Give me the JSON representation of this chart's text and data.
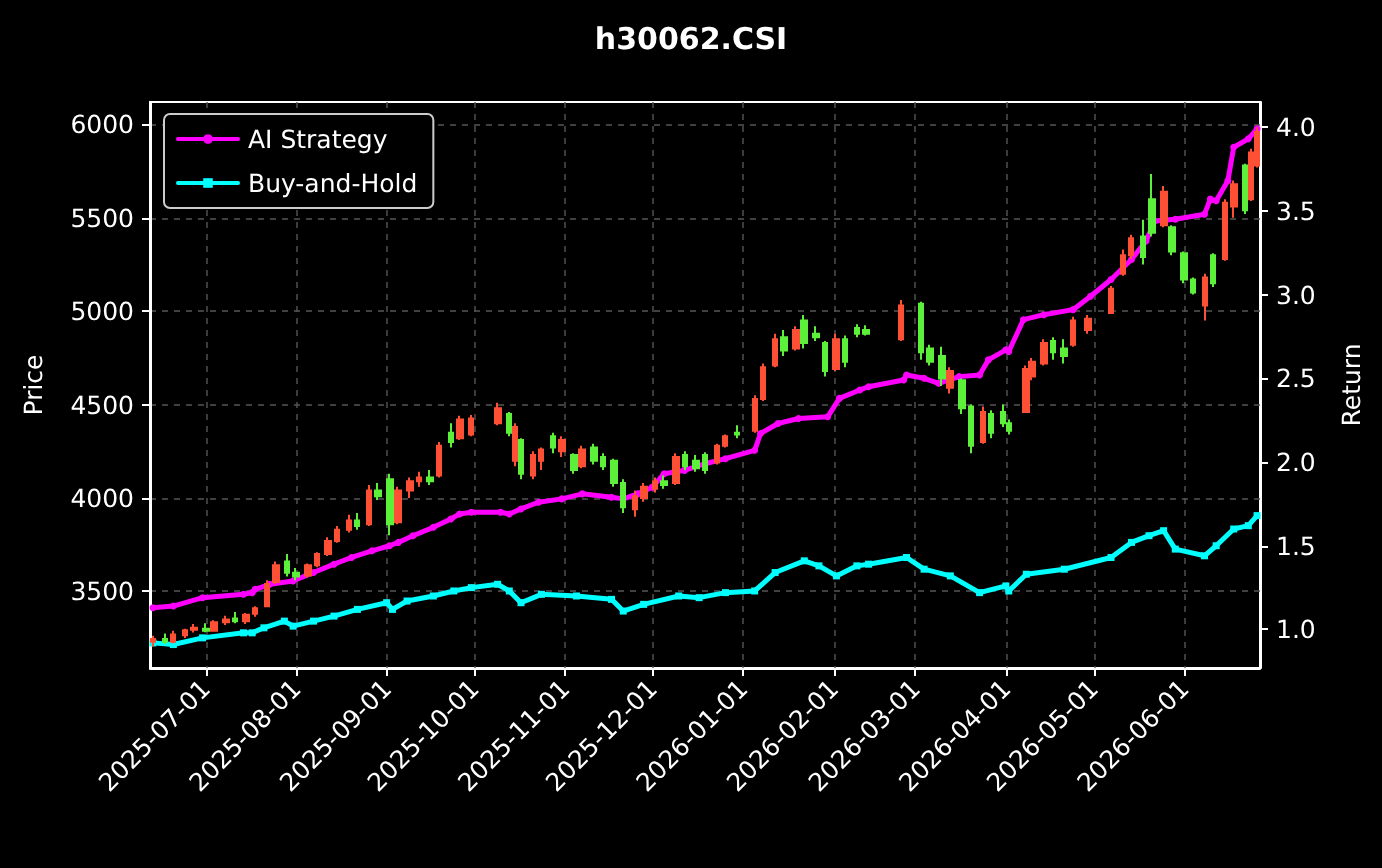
{
  "chart_data": {
    "type": "candlestick",
    "title": "h30062.CSI",
    "ylabel": "Price",
    "y2label": "Return",
    "xlim": [
      "2025-06-12",
      "2026-06-27"
    ],
    "xticks": [
      "2025-07-01",
      "2025-08-01",
      "2025-09-01",
      "2025-10-01",
      "2025-11-01",
      "2025-12-01",
      "2026-01-01",
      "2026-02-01",
      "2026-03-01",
      "2026-04-01",
      "2026-05-01",
      "2026-06-01"
    ],
    "ylim": [
      3090,
      6120
    ],
    "yticks": [
      3500,
      4000,
      4500,
      5000,
      5500,
      6000
    ],
    "y2lim": [
      0.77,
      4.15
    ],
    "y2ticks": [
      {
        "value": 1,
        "label": "1.0"
      },
      {
        "value": 1.5,
        "label": "1.5"
      },
      {
        "value": 2,
        "label": "2.0"
      },
      {
        "value": 2.5,
        "label": "2.5"
      },
      {
        "value": 3,
        "label": "3.0"
      },
      {
        "value": 3.5,
        "label": "3.5"
      },
      {
        "value": 4,
        "label": "4.0"
      }
    ],
    "grid": true,
    "legend": "top left",
    "series": [
      {
        "x": [
          "2025-06-13",
          "2025-06-17",
          "2025-06-20",
          "2025-06-24",
          "2025-06-27",
          "2025-07-01",
          "2025-07-04",
          "2025-07-08",
          "2025-07-11",
          "2025-07-15",
          "2025-07-18",
          "2025-07-22",
          "2025-07-25",
          "2025-07-29",
          "2025-08-01",
          "2025-08-05",
          "2025-08-08",
          "2025-08-12",
          "2025-08-15",
          "2025-08-19",
          "2025-08-22",
          "2025-08-26",
          "2025-08-29",
          "2025-09-02",
          "2025-09-05",
          "2025-09-09",
          "2025-09-12",
          "2025-09-16",
          "2025-09-19",
          "2025-09-23",
          "2025-09-26",
          "2025-09-30",
          "2025-10-09",
          "2025-10-13",
          "2025-10-15",
          "2025-10-17",
          "2025-10-21",
          "2025-10-24",
          "2025-10-28",
          "2025-10-31",
          "2025-11-04",
          "2025-11-07",
          "2025-11-11",
          "2025-11-14",
          "2025-11-18",
          "2025-11-21",
          "2025-11-25",
          "2025-11-28",
          "2025-12-02",
          "2025-12-05",
          "2025-12-09",
          "2025-12-12",
          "2025-12-16",
          "2025-12-19",
          "2025-12-23",
          "2025-12-26",
          "2025-12-30",
          "2026-01-05",
          "2026-01-08",
          "2026-01-12",
          "2026-01-15",
          "2026-01-19",
          "2026-01-22",
          "2026-01-26",
          "2026-01-29",
          "2026-02-02",
          "2026-02-05",
          "2026-02-09",
          "2026-02-12",
          "2026-02-24",
          "2026-03-03",
          "2026-03-06",
          "2026-03-10",
          "2026-03-13",
          "2026-03-17",
          "2026-03-20",
          "2026-03-24",
          "2026-03-27",
          "2026-03-31",
          "2026-04-02",
          "2026-04-08",
          "2026-04-10",
          "2026-04-14",
          "2026-04-17",
          "2026-04-21",
          "2026-04-24",
          "2026-04-29",
          "2026-05-07",
          "2026-05-11",
          "2026-05-14",
          "2026-05-18",
          "2026-05-21",
          "2026-05-25",
          "2026-05-28",
          "2026-06-01",
          "2026-06-04",
          "2026-06-08",
          "2026-06-11",
          "2026-06-15",
          "2026-06-18",
          "2026-06-22",
          "2026-06-24",
          "2026-06-26"
        ],
        "ohlc": [
          [
            3230,
            3262,
            3205,
            3245
          ],
          [
            3245,
            3275,
            3220,
            3230
          ],
          [
            3230,
            3290,
            3222,
            3270
          ],
          [
            3265,
            3300,
            3250,
            3292
          ],
          [
            3295,
            3325,
            3280,
            3305
          ],
          [
            3300,
            3330,
            3282,
            3290
          ],
          [
            3290,
            3345,
            3285,
            3335
          ],
          [
            3335,
            3370,
            3320,
            3350
          ],
          [
            3355,
            3390,
            3330,
            3340
          ],
          [
            3340,
            3385,
            3325,
            3375
          ],
          [
            3380,
            3420,
            3365,
            3410
          ],
          [
            3420,
            3560,
            3415,
            3540
          ],
          [
            3550,
            3660,
            3540,
            3640
          ],
          [
            3660,
            3700,
            3580,
            3600
          ],
          [
            3600,
            3625,
            3560,
            3580
          ],
          [
            3585,
            3650,
            3575,
            3640
          ],
          [
            3640,
            3710,
            3630,
            3700
          ],
          [
            3700,
            3790,
            3690,
            3770
          ],
          [
            3770,
            3850,
            3760,
            3830
          ],
          [
            3830,
            3910,
            3815,
            3880
          ],
          [
            3880,
            3920,
            3830,
            3850
          ],
          [
            3860,
            4070,
            3850,
            4040
          ],
          [
            4040,
            4080,
            3990,
            4010
          ],
          [
            4100,
            4130,
            3800,
            3860
          ],
          [
            3870,
            4060,
            3860,
            4040
          ],
          [
            4040,
            4110,
            4000,
            4090
          ],
          [
            4090,
            4140,
            4060,
            4110
          ],
          [
            4110,
            4150,
            4070,
            4090
          ],
          [
            4120,
            4300,
            4110,
            4280
          ],
          [
            4350,
            4400,
            4270,
            4300
          ],
          [
            4320,
            4440,
            4310,
            4420
          ],
          [
            4340,
            4445,
            4330,
            4425
          ],
          [
            4400,
            4510,
            4390,
            4480
          ],
          [
            4450,
            4460,
            4330,
            4350
          ],
          [
            4200,
            4400,
            4170,
            4380
          ],
          [
            4310,
            4320,
            4100,
            4130
          ],
          [
            4120,
            4250,
            4100,
            4230
          ],
          [
            4200,
            4270,
            4150,
            4260
          ],
          [
            4330,
            4350,
            4240,
            4270
          ],
          [
            4250,
            4330,
            4220,
            4310
          ],
          [
            4230,
            4240,
            4130,
            4150
          ],
          [
            4170,
            4280,
            4160,
            4260
          ],
          [
            4270,
            4290,
            4180,
            4200
          ],
          [
            4220,
            4240,
            4150,
            4170
          ],
          [
            4200,
            4210,
            4060,
            4080
          ],
          [
            4080,
            4100,
            3920,
            3950
          ],
          [
            3940,
            4040,
            3900,
            4010
          ],
          [
            4000,
            4080,
            3980,
            4060
          ],
          [
            4050,
            4110,
            4030,
            4090
          ],
          [
            4090,
            4120,
            4050,
            4070
          ],
          [
            4080,
            4240,
            4070,
            4220
          ],
          [
            4230,
            4250,
            4150,
            4170
          ],
          [
            4200,
            4230,
            4140,
            4160
          ],
          [
            4230,
            4245,
            4130,
            4150
          ],
          [
            4190,
            4290,
            4180,
            4280
          ],
          [
            4280,
            4340,
            4270,
            4330
          ],
          [
            4350,
            4390,
            4320,
            4340
          ],
          [
            4360,
            4550,
            4350,
            4530
          ],
          [
            4530,
            4720,
            4520,
            4700
          ],
          [
            4710,
            4880,
            4700,
            4850
          ],
          [
            4860,
            4900,
            4760,
            4790
          ],
          [
            4800,
            4920,
            4790,
            4900
          ],
          [
            4950,
            4980,
            4800,
            4830
          ],
          [
            4880,
            4920,
            4840,
            4860
          ],
          [
            4830,
            4840,
            4650,
            4680
          ],
          [
            4690,
            4880,
            4680,
            4850
          ],
          [
            4850,
            4870,
            4700,
            4730
          ],
          [
            4910,
            4930,
            4860,
            4880
          ],
          [
            4900,
            4925,
            4870,
            4880
          ],
          [
            4850,
            5060,
            4840,
            5030
          ],
          [
            5040,
            5050,
            4740,
            4780
          ],
          [
            4800,
            4820,
            4710,
            4730
          ],
          [
            4760,
            4810,
            4600,
            4640
          ],
          [
            4590,
            4700,
            4560,
            4680
          ],
          [
            4630,
            4640,
            4450,
            4480
          ],
          [
            4490,
            4500,
            4240,
            4280
          ],
          [
            4300,
            4490,
            4290,
            4460
          ],
          [
            4450,
            4470,
            4320,
            4350
          ],
          [
            4460,
            4500,
            4380,
            4400
          ],
          [
            4400,
            4420,
            4340,
            4360
          ],
          [
            4460,
            4710,
            4455,
            4690
          ],
          [
            4650,
            4750,
            4630,
            4730
          ],
          [
            4720,
            4850,
            4710,
            4830
          ],
          [
            4840,
            4860,
            4740,
            4780
          ],
          [
            4800,
            4850,
            4720,
            4760
          ],
          [
            4820,
            4970,
            4810,
            4950
          ],
          [
            4900,
            4980,
            4880,
            4960
          ],
          [
            4990,
            5135,
            4985,
            5120
          ],
          [
            5200,
            5330,
            5190,
            5300
          ],
          [
            5300,
            5410,
            5280,
            5390
          ],
          [
            5400,
            5490,
            5250,
            5290
          ],
          [
            5600,
            5735,
            5400,
            5420
          ],
          [
            5460,
            5670,
            5450,
            5640
          ],
          [
            5450,
            5460,
            5300,
            5320
          ],
          [
            5310,
            5320,
            5150,
            5170
          ],
          [
            5170,
            5180,
            5090,
            5100
          ],
          [
            5030,
            5200,
            4950,
            5180
          ],
          [
            5300,
            5310,
            5130,
            5150
          ],
          [
            5280,
            5600,
            5270,
            5580
          ],
          [
            5560,
            5700,
            5500,
            5680
          ],
          [
            5780,
            5790,
            5520,
            5540
          ],
          [
            5600,
            5870,
            5590,
            5850
          ],
          [
            5780,
            5985,
            5770,
            5960
          ]
        ],
        "colors": [
          "#ff5036",
          "#5cf03a",
          "#ff5036",
          "#ff5036",
          "#ff5036",
          "#5cf03a",
          "#ff5036",
          "#ff5036",
          "#5cf03a",
          "#ff5036",
          "#ff5036",
          "#ff5036",
          "#ff5036",
          "#5cf03a",
          "#5cf03a",
          "#ff5036",
          "#ff5036",
          "#ff5036",
          "#ff5036",
          "#ff5036",
          "#5cf03a",
          "#ff5036",
          "#5cf03a",
          "#5cf03a",
          "#ff5036",
          "#ff5036",
          "#ff5036",
          "#5cf03a",
          "#ff5036",
          "#5cf03a",
          "#ff5036",
          "#ff5036",
          "#ff5036",
          "#5cf03a",
          "#ff5036",
          "#5cf03a",
          "#ff5036",
          "#ff5036",
          "#5cf03a",
          "#ff5036",
          "#5cf03a",
          "#ff5036",
          "#5cf03a",
          "#5cf03a",
          "#5cf03a",
          "#5cf03a",
          "#ff5036",
          "#ff5036",
          "#ff5036",
          "#5cf03a",
          "#ff5036",
          "#5cf03a",
          "#5cf03a",
          "#5cf03a",
          "#ff5036",
          "#ff5036",
          "#5cf03a",
          "#ff5036",
          "#ff5036",
          "#ff5036",
          "#5cf03a",
          "#ff5036",
          "#5cf03a",
          "#5cf03a",
          "#5cf03a",
          "#ff5036",
          "#5cf03a",
          "#5cf03a",
          "#5cf03a",
          "#ff5036",
          "#5cf03a",
          "#5cf03a",
          "#5cf03a",
          "#ff5036",
          "#5cf03a",
          "#5cf03a",
          "#ff5036",
          "#5cf03a",
          "#5cf03a",
          "#5cf03a",
          "#ff5036",
          "#ff5036",
          "#ff5036",
          "#5cf03a",
          "#5cf03a",
          "#ff5036",
          "#ff5036",
          "#ff5036",
          "#ff5036",
          "#ff5036",
          "#5cf03a",
          "#5cf03a",
          "#ff5036",
          "#5cf03a",
          "#5cf03a",
          "#5cf03a",
          "#ff5036",
          "#5cf03a",
          "#ff5036",
          "#ff5036",
          "#5cf03a",
          "#ff5036",
          "#ff5036"
        ]
      },
      {
        "name": "AI Strategy",
        "type": "line",
        "axis": "y2",
        "color": "#ff00ff",
        "marker": "circle",
        "x": [
          "2025-06-13",
          "2025-06-20",
          "2025-06-30",
          "2025-07-14",
          "2025-07-17",
          "2025-07-18",
          "2025-07-23",
          "2025-07-31",
          "2025-08-07",
          "2025-08-14",
          "2025-08-20",
          "2025-08-27",
          "2025-09-02",
          "2025-09-05",
          "2025-09-10",
          "2025-09-17",
          "2025-09-23",
          "2025-09-26",
          "2025-09-30",
          "2025-10-10",
          "2025-10-13",
          "2025-10-17",
          "2025-10-23",
          "2025-10-31",
          "2025-11-07",
          "2025-11-17",
          "2025-11-21",
          "2025-11-26",
          "2025-12-01",
          "2025-12-05",
          "2025-12-12",
          "2025-12-19",
          "2025-12-26",
          "2026-01-05",
          "2026-01-07",
          "2026-01-13",
          "2026-01-20",
          "2026-01-30",
          "2026-02-03",
          "2026-02-10",
          "2026-02-13",
          "2026-02-25",
          "2026-02-26",
          "2026-03-04",
          "2026-03-09",
          "2026-03-16",
          "2026-03-23",
          "2026-03-26",
          "2026-04-01",
          "2026-04-02",
          "2026-04-07",
          "2026-04-14",
          "2026-04-24",
          "2026-04-30",
          "2026-05-07",
          "2026-05-14",
          "2026-05-19",
          "2026-05-22",
          "2026-05-29",
          "2026-06-08",
          "2026-06-10",
          "2026-06-12",
          "2026-06-16",
          "2026-06-18",
          "2026-06-23",
          "2026-06-26"
        ],
        "values": [
          1.13,
          1.14,
          1.19,
          1.21,
          1.22,
          1.24,
          1.27,
          1.29,
          1.34,
          1.39,
          1.43,
          1.47,
          1.5,
          1.52,
          1.56,
          1.61,
          1.66,
          1.69,
          1.7,
          1.7,
          1.69,
          1.72,
          1.76,
          1.78,
          1.81,
          1.79,
          1.78,
          1.81,
          1.85,
          1.93,
          1.95,
          1.99,
          2.02,
          2.07,
          2.17,
          2.23,
          2.26,
          2.27,
          2.38,
          2.43,
          2.45,
          2.49,
          2.52,
          2.5,
          2.47,
          2.51,
          2.52,
          2.61,
          2.67,
          2.66,
          2.85,
          2.88,
          2.91,
          2.99,
          3.09,
          3.21,
          3.32,
          3.44,
          3.45,
          3.48,
          3.57,
          3.56,
          3.68,
          3.88,
          3.93,
          3.99
        ]
      },
      {
        "name": "Buy-and-Hold",
        "type": "line",
        "axis": "y2",
        "color": "#00ffff",
        "marker": "square",
        "x": [
          "2025-06-13",
          "2025-06-20",
          "2025-06-30",
          "2025-07-14",
          "2025-07-17",
          "2025-07-21",
          "2025-07-28",
          "2025-07-31",
          "2025-08-07",
          "2025-08-14",
          "2025-08-22",
          "2025-09-01",
          "2025-09-03",
          "2025-09-08",
          "2025-09-17",
          "2025-09-24",
          "2025-09-30",
          "2025-10-09",
          "2025-10-13",
          "2025-10-17",
          "2025-10-24",
          "2025-11-05",
          "2025-11-17",
          "2025-11-21",
          "2025-11-28",
          "2025-12-10",
          "2025-12-17",
          "2025-12-26",
          "2026-01-05",
          "2026-01-12",
          "2026-01-22",
          "2026-01-27",
          "2026-02-02",
          "2026-02-09",
          "2026-02-13",
          "2026-02-26",
          "2026-03-04",
          "2026-03-13",
          "2026-03-23",
          "2026-04-01",
          "2026-04-02",
          "2026-04-08",
          "2026-04-21",
          "2026-05-07",
          "2026-05-14",
          "2026-05-20",
          "2026-05-25",
          "2026-05-29",
          "2026-06-08",
          "2026-06-12",
          "2026-06-18",
          "2026-06-23",
          "2026-06-26"
        ],
        "values": [
          0.92,
          0.91,
          0.95,
          0.98,
          0.98,
          1.01,
          1.05,
          1.02,
          1.05,
          1.08,
          1.12,
          1.16,
          1.12,
          1.17,
          1.2,
          1.23,
          1.25,
          1.27,
          1.23,
          1.16,
          1.21,
          1.2,
          1.18,
          1.11,
          1.15,
          1.2,
          1.19,
          1.22,
          1.23,
          1.34,
          1.41,
          1.38,
          1.32,
          1.38,
          1.39,
          1.43,
          1.36,
          1.32,
          1.22,
          1.26,
          1.23,
          1.33,
          1.36,
          1.43,
          1.52,
          1.56,
          1.59,
          1.48,
          1.44,
          1.5,
          1.6,
          1.62,
          1.68
        ]
      }
    ]
  }
}
